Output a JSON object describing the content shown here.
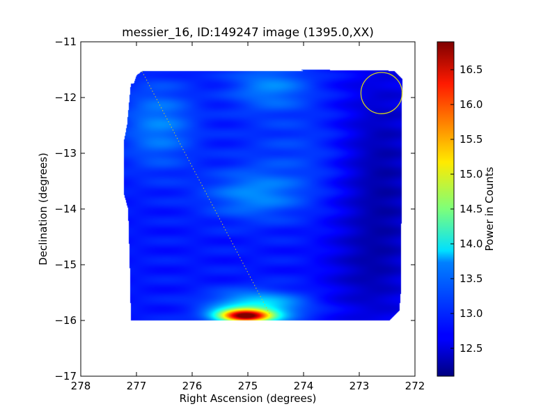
{
  "chart_data": {
    "type": "heatmap",
    "title": "messier_16, ID:149247 image (1395.0,XX)",
    "xlabel": "Right Ascension (degrees)",
    "ylabel": "Declination (degrees)",
    "xlim": [
      278,
      272
    ],
    "ylim": [
      -17,
      -11
    ],
    "x_ticks": [
      278,
      277,
      276,
      275,
      274,
      273,
      272
    ],
    "x_tick_labels": [
      "278",
      "277",
      "276",
      "275",
      "274",
      "273",
      "272"
    ],
    "y_ticks": [
      -11,
      -12,
      -13,
      -14,
      -15,
      -16,
      -17
    ],
    "y_tick_labels": [
      "−11",
      "−12",
      "−13",
      "−14",
      "−15",
      "−16",
      "−17"
    ],
    "grid": false,
    "colormap": "jet",
    "colorbar": {
      "label": "Power in Counts",
      "range": [
        12.1,
        16.9
      ],
      "ticks": [
        12.5,
        13.0,
        13.5,
        14.0,
        14.5,
        15.0,
        15.5,
        16.0,
        16.5
      ],
      "tick_labels": [
        "12.5",
        "13.0",
        "13.5",
        "14.0",
        "14.5",
        "15.0",
        "15.5",
        "16.0",
        "16.5"
      ]
    },
    "map_footprint_ra_dec": [
      [
        276.9,
        -11.53
      ],
      [
        274.0,
        -11.53
      ],
      [
        274.05,
        -11.5
      ],
      [
        272.37,
        -11.52
      ],
      [
        272.23,
        -11.67
      ],
      [
        272.25,
        -15.45
      ],
      [
        272.28,
        -15.82
      ],
      [
        272.45,
        -16.0
      ],
      [
        277.1,
        -16.0
      ],
      [
        277.12,
        -15.0
      ],
      [
        277.15,
        -14.0
      ],
      [
        277.22,
        -13.75
      ],
      [
        277.22,
        -12.75
      ],
      [
        277.17,
        -12.5
      ],
      [
        277.1,
        -11.75
      ],
      [
        277.05,
        -11.75
      ],
      [
        277.0,
        -11.6
      ]
    ],
    "background_power": 12.8,
    "power_peaks": [
      {
        "ra": 275.05,
        "dec": -15.92,
        "power": 16.6,
        "ra_sigma": 0.33,
        "dec_sigma": 0.08
      },
      {
        "ra": 274.85,
        "dec": -15.75,
        "power": 13.9,
        "ra_sigma": 0.55,
        "dec_sigma": 0.18
      },
      {
        "ra": 274.9,
        "dec": -13.75,
        "power": 13.3,
        "ra_sigma": 0.6,
        "dec_sigma": 0.3
      },
      {
        "ra": 276.6,
        "dec": -12.5,
        "power": 13.3,
        "ra_sigma": 0.45,
        "dec_sigma": 0.55
      },
      {
        "ra": 274.6,
        "dec": -11.8,
        "power": 13.3,
        "ra_sigma": 0.5,
        "dec_sigma": 0.3
      },
      {
        "ra": 274.2,
        "dec": -13.0,
        "power": 13.0,
        "ra_sigma": 0.7,
        "dec_sigma": 0.6
      }
    ],
    "low_power_regions": [
      {
        "ra": 272.6,
        "dec": -13.6,
        "power": 12.3,
        "ra_sigma": 0.5,
        "dec_sigma": 1.5
      },
      {
        "ra": 273.0,
        "dec": -15.2,
        "power": 12.6,
        "ra_sigma": 0.5,
        "dec_sigma": 0.6
      }
    ],
    "beam_circle": {
      "ra": 272.6,
      "dec": -11.92,
      "radius_deg": 0.37,
      "color": "#d4d41e"
    },
    "scan_track": {
      "from": [
        276.9,
        -11.53
      ],
      "to": [
        274.6,
        -15.9
      ],
      "color": "#c8c832"
    }
  }
}
